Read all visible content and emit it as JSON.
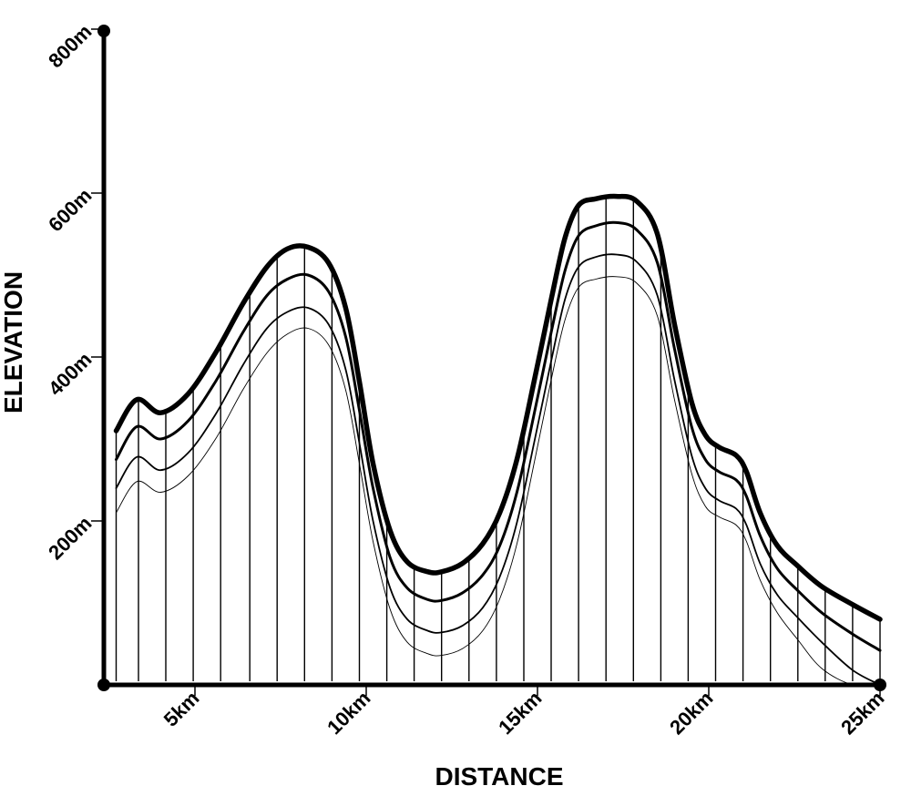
{
  "chart_data": {
    "type": "line",
    "xlabel": "DISTANCE",
    "ylabel": "ELEVATION",
    "xlim": [
      2.5,
      25
    ],
    "ylim": [
      0,
      800
    ],
    "x_ticks": [
      5,
      10,
      15,
      20,
      25
    ],
    "x_tick_labels": [
      "5km",
      "10km",
      "15km",
      "20km",
      "25km"
    ],
    "y_ticks": [
      200,
      400,
      600,
      800
    ],
    "y_tick_labels": [
      "200m",
      "400m",
      "600m",
      "800m"
    ],
    "grid": false,
    "drop_lines_x": [
      2.7,
      3.35,
      4.15,
      4.95,
      5.75,
      6.6,
      7.4,
      8.2,
      9.0,
      9.8,
      10.6,
      11.4,
      12.2,
      13.0,
      13.8,
      14.6,
      15.4,
      16.2,
      17.0,
      17.8,
      18.6,
      19.4,
      20.2,
      21.0,
      21.8,
      22.6,
      23.4,
      24.2,
      25.0
    ],
    "series": [
      {
        "x": [
          2.7,
          3.3,
          4.0,
          4.8,
          5.6,
          6.4,
          7.1,
          7.7,
          8.3,
          8.9,
          9.4,
          9.8,
          10.2,
          10.7,
          11.2,
          11.8,
          12.2,
          12.8,
          13.4,
          13.9,
          14.4,
          14.9,
          15.4,
          15.8,
          16.2,
          16.7,
          17.3,
          17.9,
          18.5,
          19.0,
          19.5,
          19.9,
          20.3,
          20.8,
          21.1,
          21.5,
          22.0,
          22.6,
          23.3,
          24.2,
          25.0
        ],
        "y": [
          310,
          348,
          332,
          355,
          405,
          465,
          510,
          532,
          534,
          515,
          460,
          370,
          270,
          188,
          150,
          138,
          138,
          148,
          172,
          210,
          275,
          370,
          470,
          545,
          585,
          593,
          596,
          590,
          550,
          440,
          345,
          305,
          290,
          280,
          260,
          210,
          170,
          145,
          120,
          98,
          80
        ]
      },
      {
        "x": [
          2.7,
          3.3,
          4.0,
          4.8,
          5.6,
          6.4,
          7.1,
          7.7,
          8.3,
          8.9,
          9.4,
          9.8,
          10.2,
          10.7,
          11.2,
          11.8,
          12.2,
          12.8,
          13.4,
          13.9,
          14.4,
          14.9,
          15.4,
          15.8,
          16.2,
          16.7,
          17.3,
          17.9,
          18.5,
          19.0,
          19.5,
          19.9,
          20.3,
          20.8,
          21.1,
          21.5,
          22.0,
          22.6,
          23.3,
          24.2,
          25.0
        ],
        "y": [
          275,
          315,
          300,
          322,
          370,
          430,
          475,
          495,
          500,
          480,
          425,
          335,
          240,
          155,
          118,
          104,
          103,
          112,
          134,
          170,
          235,
          330,
          430,
          505,
          548,
          560,
          564,
          555,
          515,
          410,
          315,
          275,
          260,
          250,
          230,
          182,
          142,
          115,
          88,
          62,
          42
        ]
      },
      {
        "x": [
          2.7,
          3.3,
          4.0,
          4.8,
          5.6,
          6.4,
          7.1,
          7.7,
          8.3,
          8.9,
          9.4,
          9.8,
          10.2,
          10.7,
          11.2,
          11.8,
          12.2,
          12.8,
          13.4,
          13.9,
          14.4,
          14.9,
          15.4,
          15.8,
          16.2,
          16.7,
          17.3,
          17.9,
          18.5,
          19.0,
          19.5,
          19.9,
          20.3,
          20.8,
          21.1,
          21.5,
          22.0,
          22.6,
          23.3,
          24.2,
          25.0
        ],
        "y": [
          240,
          278,
          262,
          283,
          330,
          390,
          435,
          455,
          460,
          440,
          385,
          295,
          200,
          118,
          80,
          66,
          64,
          72,
          94,
          132,
          198,
          295,
          395,
          470,
          510,
          522,
          525,
          516,
          475,
          372,
          280,
          240,
          225,
          215,
          195,
          148,
          110,
          82,
          52,
          18,
          0
        ]
      },
      {
        "x": [
          2.7,
          3.3,
          4.0,
          4.8,
          5.6,
          6.4,
          7.1,
          7.7,
          8.3,
          8.9,
          9.4,
          9.8,
          10.2,
          10.7,
          11.2,
          11.8,
          12.2,
          12.8,
          13.4,
          13.9,
          14.4,
          14.9,
          15.4,
          15.8,
          16.2,
          16.7,
          17.3,
          17.9,
          18.5,
          19.0,
          19.5,
          19.9,
          20.3,
          20.8,
          21.1,
          21.5,
          22.0,
          22.6,
          23.3,
          24.2,
          25.0
        ],
        "y": [
          210,
          248,
          235,
          255,
          300,
          360,
          405,
          428,
          435,
          415,
          360,
          270,
          175,
          92,
          52,
          38,
          36,
          44,
          66,
          105,
          172,
          270,
          372,
          445,
          485,
          495,
          498,
          490,
          450,
          348,
          258,
          218,
          205,
          195,
          175,
          128,
          88,
          55,
          20,
          0,
          0
        ]
      }
    ]
  }
}
